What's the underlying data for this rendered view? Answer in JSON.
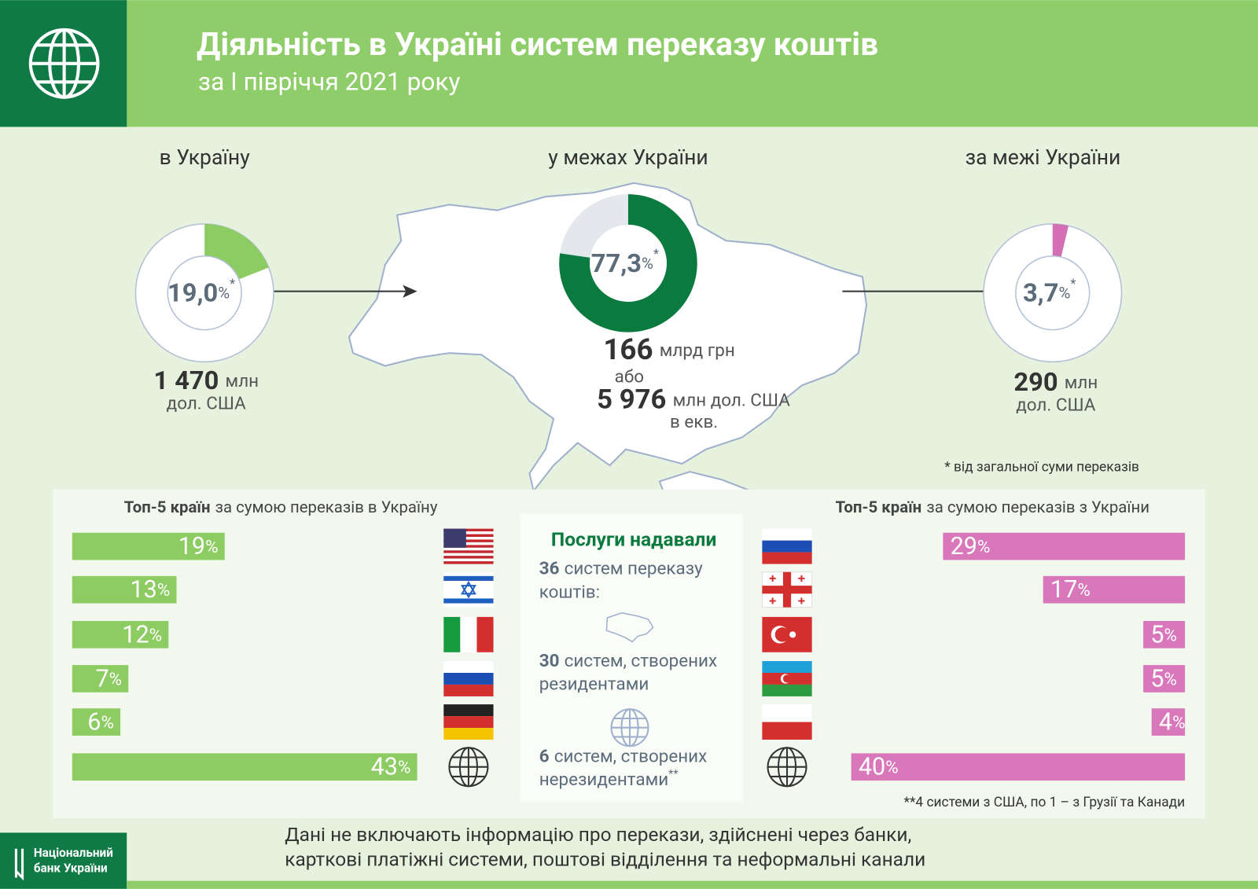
{
  "header": {
    "title": "Діяльність в Україні систем переказу коштів",
    "subtitle": "за І півріччя 2021 року"
  },
  "inflow": {
    "heading": "в Україну",
    "share": {
      "value": 19.0,
      "label": "19,0"
    },
    "share_unit": "%",
    "share_mark": "*",
    "amount": {
      "value": 1470,
      "label": "1 470"
    },
    "amount_unit": "млн",
    "currency": "дол. США"
  },
  "domestic": {
    "heading": "у межах України",
    "share": {
      "value": 77.3,
      "label": "77,3"
    },
    "share_unit": "%",
    "share_mark": "*",
    "amount_uah": 166,
    "amount_uah_unit": "млрд грн",
    "or": "або",
    "amount_usd": {
      "value": 5976,
      "label": "5 976"
    },
    "amount_usd_unit": "млн дол. США",
    "equivalent": "в екв."
  },
  "outflow": {
    "heading": "за межі України",
    "share": {
      "value": 3.7,
      "label": "3,7"
    },
    "share_unit": "%",
    "share_mark": "*",
    "amount": 290,
    "amount_unit": "млн",
    "currency": "дол. США"
  },
  "share_footnote": "* від загальної суми переказів",
  "top_in": {
    "title_bold": "Топ-5 країн",
    "title_rest": "за сумою переказів в Україну",
    "shares": [
      19,
      13,
      12,
      7,
      6,
      43
    ],
    "unit": "%",
    "color": "#8dcc62"
  },
  "top_out": {
    "title_bold": "Топ-5 країн",
    "title_rest": "за сумою переказів з України",
    "shares": [
      29,
      17,
      5,
      5,
      4,
      40
    ],
    "unit": "%",
    "color": "#d977bb"
  },
  "services": {
    "title": "Послуги надавали",
    "items": [
      {
        "count": 36,
        "line1": "систем переказу",
        "line2": "коштів:"
      },
      {
        "count": 30,
        "line1": "систем, створених",
        "line2": "резидентами"
      },
      {
        "count": 6,
        "line1": "систем, створених",
        "line2": "нерезидентами",
        "mark": "**"
      }
    ]
  },
  "systems_footnote": "**4 системи з США, по 1 – з Грузії та Канади",
  "footer": {
    "bank": [
      "Національний",
      "банк України"
    ],
    "note": [
      "Дані не включають інформацію про перекази, здійснені через банки,",
      "карткові платіжні системи, поштові відділення та неформальні канали"
    ]
  }
}
